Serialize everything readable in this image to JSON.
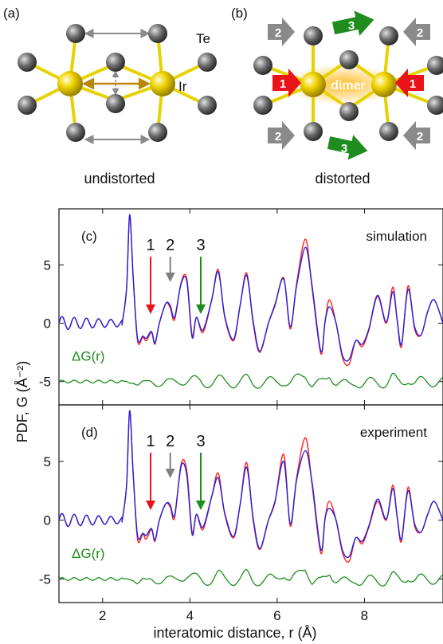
{
  "figure": {
    "panel_a": {
      "label": "(a)",
      "atom_te": "Te",
      "atom_ir": "Ir",
      "caption": "undistorted"
    },
    "panel_b": {
      "label": "(b)",
      "dimer_label": "dimer",
      "caption": "distorted",
      "arrow_labels": [
        "1",
        "2",
        "3"
      ],
      "colors": {
        "1": "#e8141a",
        "2": "#808080",
        "3": "#1e8c1e"
      }
    }
  },
  "chart_data": [
    {
      "type": "line",
      "panel_label": "(c)",
      "annotation": "simulation",
      "diff_label": "ΔG(r)",
      "markers": [
        {
          "label": "1",
          "x": 3.1,
          "color": "#e8141a"
        },
        {
          "label": "2",
          "x": 3.55,
          "color": "#808080"
        },
        {
          "label": "3",
          "x": 4.25,
          "color": "#1e8c1e"
        }
      ],
      "xlim": [
        1,
        9.8
      ],
      "ylim": [
        -7,
        9.8
      ],
      "yticks": [
        5,
        0,
        -5
      ],
      "series": [
        {
          "color": "#ff2020",
          "x": [
            1.0,
            2.45,
            2.55,
            2.62,
            2.7,
            2.8,
            2.92,
            3.0,
            3.12,
            3.2,
            3.3,
            3.45,
            3.55,
            3.65,
            3.8,
            3.93,
            4.05,
            4.15,
            4.3,
            4.5,
            4.65,
            4.8,
            5.0,
            5.15,
            5.3,
            5.45,
            5.6,
            5.8,
            5.95,
            6.15,
            6.3,
            6.45,
            6.65,
            6.8,
            7.0,
            7.1,
            7.2,
            7.35,
            7.5,
            7.65,
            7.8,
            7.95,
            8.1,
            8.3,
            8.5,
            8.65,
            8.75,
            8.85,
            9.0,
            9.15,
            9.3,
            9.45,
            9.6,
            9.8
          ],
          "y": [
            0,
            0,
            3,
            9.2,
            4,
            -1.5,
            -1.2,
            -1.5,
            -0.8,
            -1.8,
            0,
            1.7,
            1.3,
            0.3,
            3.5,
            3.8,
            -1,
            0.5,
            -0.8,
            2,
            4.6,
            0.5,
            -1.5,
            1.5,
            4.3,
            0,
            -2.5,
            0,
            1.5,
            3.9,
            -0.5,
            3.5,
            7.2,
            3,
            -2.6,
            0.2,
            2,
            0,
            -3,
            -3.5,
            -1.5,
            -2,
            -0.6,
            2.3,
            0,
            3.1,
            0.2,
            -2,
            3.2,
            -0.5,
            -1,
            1,
            2,
            0
          ]
        },
        {
          "color": "#2020e0",
          "x": [
            1.0,
            2.45,
            2.55,
            2.62,
            2.7,
            2.8,
            2.92,
            3.0,
            3.12,
            3.2,
            3.3,
            3.45,
            3.55,
            3.65,
            3.8,
            3.93,
            4.05,
            4.15,
            4.3,
            4.5,
            4.65,
            4.8,
            5.0,
            5.15,
            5.3,
            5.45,
            5.6,
            5.8,
            5.95,
            6.15,
            6.3,
            6.45,
            6.65,
            6.8,
            7.0,
            7.1,
            7.2,
            7.35,
            7.5,
            7.65,
            7.8,
            7.95,
            8.1,
            8.3,
            8.5,
            8.65,
            8.75,
            8.85,
            9.0,
            9.15,
            9.3,
            9.45,
            9.6,
            9.8
          ],
          "y": [
            0,
            0,
            3,
            9.3,
            4,
            -1.3,
            -1.1,
            -1.3,
            -0.7,
            -1.7,
            0,
            1.7,
            1.5,
            0.5,
            3.4,
            3.6,
            -1.2,
            0.5,
            -0.6,
            2,
            4.4,
            0.6,
            -1.4,
            1.5,
            4.1,
            0.2,
            -2.4,
            0,
            1.6,
            3.8,
            -0.3,
            3.3,
            6.5,
            3.2,
            -2.4,
            0.2,
            1.4,
            0,
            -2.8,
            -3.1,
            -1.5,
            -1.8,
            -0.5,
            2.4,
            0.1,
            2.7,
            0.3,
            -1.8,
            2.9,
            -0.3,
            -1,
            1,
            2,
            0
          ]
        }
      ]
    },
    {
      "type": "line",
      "panel_label": "(d)",
      "annotation": "experiment",
      "diff_label": "ΔG(r)",
      "markers": [
        {
          "label": "1",
          "x": 3.1,
          "color": "#e8141a"
        },
        {
          "label": "2",
          "x": 3.55,
          "color": "#808080"
        },
        {
          "label": "3",
          "x": 4.25,
          "color": "#1e8c1e"
        }
      ],
      "xlim": [
        1,
        9.8
      ],
      "ylim": [
        -7,
        9.8
      ],
      "xlabel": "interatomic distance, r (Å)",
      "xticks": [
        2,
        4,
        6,
        8
      ],
      "yticks": [
        5,
        0,
        -5
      ],
      "series": [
        {
          "color": "#ff2020",
          "x": [
            1.0,
            2.45,
            2.55,
            2.62,
            2.7,
            2.8,
            2.92,
            3.0,
            3.12,
            3.2,
            3.3,
            3.45,
            3.55,
            3.65,
            3.8,
            3.93,
            4.05,
            4.15,
            4.3,
            4.5,
            4.65,
            4.8,
            5.0,
            5.15,
            5.3,
            5.45,
            5.6,
            5.8,
            5.95,
            6.15,
            6.3,
            6.45,
            6.65,
            6.8,
            7.0,
            7.1,
            7.2,
            7.35,
            7.5,
            7.65,
            7.8,
            7.95,
            8.1,
            8.3,
            8.5,
            8.65,
            8.75,
            8.85,
            9.0,
            9.15,
            9.3,
            9.45,
            9.6,
            9.8
          ],
          "y": [
            0,
            0,
            3,
            9.3,
            4,
            -1.6,
            -1.2,
            -1.6,
            -0.8,
            -1.8,
            0,
            1.4,
            1.1,
            0.2,
            4.8,
            4.2,
            -1,
            0.5,
            -0.8,
            2,
            4,
            0.5,
            -1.5,
            1.3,
            4.9,
            0,
            -2.5,
            0,
            1.5,
            5.6,
            -0.5,
            3.7,
            7,
            3,
            -2.8,
            0.2,
            1.6,
            0,
            -2.8,
            -3.5,
            -1.5,
            -2,
            -0.6,
            1.6,
            0,
            3,
            0.2,
            -1.8,
            2.8,
            -0.5,
            -1,
            0.5,
            1.6,
            0
          ]
        },
        {
          "color": "#2020e0",
          "x": [
            1.0,
            2.45,
            2.55,
            2.62,
            2.7,
            2.8,
            2.92,
            3.0,
            3.12,
            3.2,
            3.3,
            3.45,
            3.55,
            3.65,
            3.8,
            3.93,
            4.05,
            4.15,
            4.3,
            4.5,
            4.65,
            4.8,
            5.0,
            5.15,
            5.3,
            5.45,
            5.6,
            5.8,
            5.95,
            6.15,
            6.3,
            6.45,
            6.65,
            6.8,
            7.0,
            7.1,
            7.2,
            7.35,
            7.5,
            7.65,
            7.8,
            7.95,
            8.1,
            8.3,
            8.5,
            8.65,
            8.75,
            8.85,
            9.0,
            9.15,
            9.3,
            9.45,
            9.6,
            9.8
          ],
          "y": [
            0,
            0,
            3,
            9.3,
            4,
            -1.3,
            -1.1,
            -1.3,
            -0.7,
            -1.7,
            0,
            1.4,
            1.3,
            0.4,
            4.6,
            3.8,
            -1.2,
            0.5,
            -0.6,
            2,
            3.6,
            0.6,
            -1.4,
            1.3,
            4.5,
            0.2,
            -2.4,
            0,
            1.6,
            5,
            -0.3,
            3.5,
            5.9,
            3.2,
            -2.5,
            0.2,
            1,
            0,
            -2.6,
            -3.1,
            -1.5,
            -1.8,
            -0.5,
            1.8,
            0.1,
            2.7,
            0.3,
            -1.6,
            2.5,
            -0.3,
            -1,
            0.5,
            1.6,
            0
          ]
        }
      ]
    }
  ],
  "shared_ylabel": "PDF, G (Å⁻²)"
}
